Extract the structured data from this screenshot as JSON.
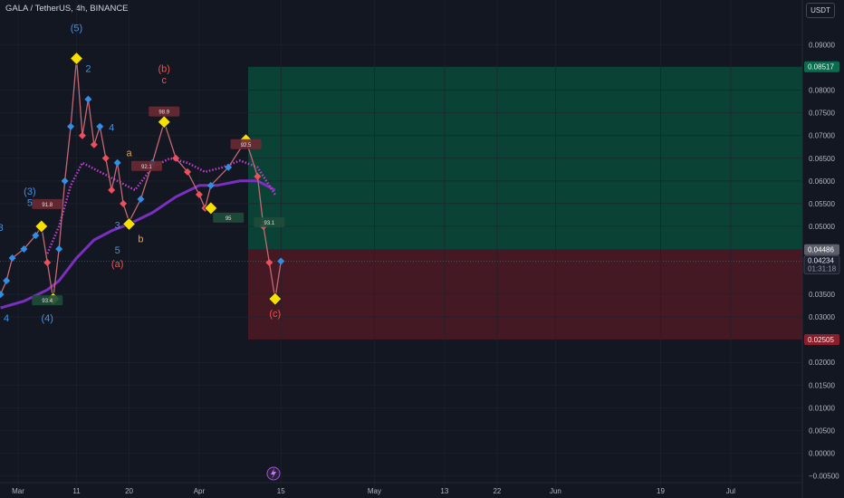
{
  "header": {
    "symbol_title": "GALA / TetherUS, 4h, BINANCE",
    "currency": "USDT"
  },
  "colors": {
    "background": "#131722",
    "profit_zone": "#0b4a3a",
    "loss_zone": "#4d1a23",
    "axis_text": "#b2b5be",
    "ma_main": "#7b2fbe",
    "ma_dotted": "#c03fd0",
    "pivot_marker": "#f5e000",
    "bull_marker": "#2f8fe6",
    "bear_marker": "#ef4f5b",
    "wave_blue": "#4a8fe0",
    "wave_red": "#ef5350",
    "wave_orange": "#f0a040"
  },
  "chart_data": {
    "type": "line",
    "x_tick_labels": [
      "Mar",
      "11",
      "20",
      "Apr",
      "15",
      "May",
      "13",
      "22",
      "Jun",
      "19",
      "Jul"
    ],
    "y_ticks": [
      "0.09000",
      "0.08000",
      "0.07500",
      "0.07000",
      "0.06500",
      "0.06000",
      "0.05500",
      "0.05000",
      "0.03500",
      "0.03000",
      "0.02000",
      "0.01500",
      "0.01000",
      "0.00500",
      "0.00000",
      "−0.00500"
    ],
    "ylim": [
      -0.0055,
      0.0935
    ],
    "price_labels": {
      "target": "0.08517",
      "entry": "0.04486",
      "current": "0.04234",
      "countdown": "01:31:18",
      "stop": "0.02505"
    },
    "position": {
      "type": "long",
      "target": 0.08517,
      "entry": 0.04486,
      "stop": 0.02505
    },
    "series": [
      {
        "role": "price path",
        "points": [
          [
            "Feb 27",
            0.035
          ],
          [
            "Feb 28",
            0.038
          ],
          [
            "Feb 29",
            0.043
          ],
          [
            "Mar 2",
            0.045
          ],
          [
            "Mar 4",
            0.048
          ],
          [
            "Mar 5",
            0.05
          ],
          [
            "Mar 6",
            0.042
          ],
          [
            "Mar 7",
            0.034
          ],
          [
            "Mar 8",
            0.045
          ],
          [
            "Mar 9",
            0.06
          ],
          [
            "Mar 10",
            0.072
          ],
          [
            "Mar 11",
            0.087
          ],
          [
            "Mar 12",
            0.07
          ],
          [
            "Mar 13",
            0.078
          ],
          [
            "Mar 14",
            0.068
          ],
          [
            "Mar 15",
            0.072
          ],
          [
            "Mar 16",
            0.065
          ],
          [
            "Mar 17",
            0.058
          ],
          [
            "Mar 18",
            0.064
          ],
          [
            "Mar 19",
            0.055
          ],
          [
            "Mar 20",
            0.051
          ],
          [
            "Mar 22",
            0.056
          ],
          [
            "Mar 24",
            0.064
          ],
          [
            "Mar 26",
            0.073
          ],
          [
            "Mar 28",
            0.065
          ],
          [
            "Mar 30",
            0.062
          ],
          [
            "Apr 1",
            0.057
          ],
          [
            "Apr 2",
            0.054
          ],
          [
            "Apr 3",
            0.059
          ],
          [
            "Apr 6",
            0.063
          ],
          [
            "Apr 9",
            0.069
          ],
          [
            "Apr 11",
            0.061
          ],
          [
            "Apr 12",
            0.05
          ],
          [
            "Apr 13",
            0.042
          ],
          [
            "Apr 14",
            0.034
          ],
          [
            "Apr 15",
            0.0423
          ]
        ]
      },
      {
        "role": "moving average (solid)",
        "points": [
          [
            "Feb 27",
            0.032
          ],
          [
            "Mar 2",
            0.0335
          ],
          [
            "Mar 6",
            0.036
          ],
          [
            "Mar 8",
            0.038
          ],
          [
            "Mar 11",
            0.043
          ],
          [
            "Mar 14",
            0.047
          ],
          [
            "Mar 17",
            0.049
          ],
          [
            "Mar 20",
            0.0505
          ],
          [
            "Mar 24",
            0.053
          ],
          [
            "Mar 28",
            0.0565
          ],
          [
            "Apr 1",
            0.059
          ],
          [
            "Apr 4",
            0.059
          ],
          [
            "Apr 8",
            0.06
          ],
          [
            "Apr 11",
            0.06
          ],
          [
            "Apr 14",
            0.058
          ]
        ]
      },
      {
        "role": "moving average (dotted)",
        "points": [
          [
            "Mar 6",
            0.044
          ],
          [
            "Mar 8",
            0.05
          ],
          [
            "Mar 10",
            0.059
          ],
          [
            "Mar 12",
            0.064
          ],
          [
            "Mar 15",
            0.062
          ],
          [
            "Mar 18",
            0.06
          ],
          [
            "Mar 21",
            0.058
          ],
          [
            "Mar 24",
            0.063
          ],
          [
            "Mar 27",
            0.065
          ],
          [
            "Mar 30",
            0.064
          ],
          [
            "Apr 2",
            0.062
          ],
          [
            "Apr 5",
            0.063
          ],
          [
            "Apr 8",
            0.0645
          ],
          [
            "Apr 11",
            0.063
          ],
          [
            "Apr 14",
            0.057
          ]
        ]
      }
    ],
    "pivot_markers": [
      [
        "Mar 5",
        0.05
      ],
      [
        "Mar 7",
        0.034
      ],
      [
        "Mar 11",
        0.087
      ],
      [
        "Mar 20",
        0.0505
      ],
      [
        "Mar 26",
        0.073
      ],
      [
        "Apr 3",
        0.054
      ],
      [
        "Apr 9",
        0.069
      ],
      [
        "Apr 14",
        0.034
      ]
    ],
    "wave_labels": [
      {
        "text": "(5)",
        "x": "Mar 11",
        "y": 0.093,
        "color": "blue"
      },
      {
        "text": "2",
        "x": "Mar 13",
        "y": 0.084,
        "color": "blue"
      },
      {
        "text": "4",
        "x": "Mar 17",
        "y": 0.071,
        "color": "blue"
      },
      {
        "text": "(3)",
        "x": "Mar 3",
        "y": 0.057,
        "color": "blue"
      },
      {
        "text": "5",
        "x": "Mar 3",
        "y": 0.0545,
        "color": "blue"
      },
      {
        "text": "3",
        "x": "Feb 27",
        "y": 0.049,
        "color": "blue"
      },
      {
        "text": "3",
        "x": "Mar 18",
        "y": 0.0495,
        "color": "blue"
      },
      {
        "text": "5",
        "x": "Mar 18",
        "y": 0.044,
        "color": "blue"
      },
      {
        "text": "4",
        "x": "Feb 28",
        "y": 0.029,
        "color": "blue"
      },
      {
        "text": "(4)",
        "x": "Mar 6",
        "y": 0.029,
        "color": "blue"
      },
      {
        "text": "(b)",
        "x": "Mar 26",
        "y": 0.084,
        "color": "red"
      },
      {
        "text": "c",
        "x": "Mar 26",
        "y": 0.0815,
        "color": "red"
      },
      {
        "text": "a",
        "x": "Mar 20",
        "y": 0.0655,
        "color": "orange"
      },
      {
        "text": "b",
        "x": "Mar 22",
        "y": 0.0465,
        "color": "orange"
      },
      {
        "text": "(a)",
        "x": "Mar 18",
        "y": 0.041,
        "color": "red"
      },
      {
        "text": "(c)",
        "x": "Apr 14",
        "y": 0.03,
        "color": "red"
      }
    ],
    "score_tags": [
      {
        "text": "91.8",
        "x": "Mar 6",
        "y": 0.0548,
        "kind": "bear"
      },
      {
        "text": "93.4",
        "x": "Mar 6",
        "y": 0.0336,
        "kind": "bull"
      },
      {
        "text": "98.9",
        "x": "Mar 26",
        "y": 0.0752,
        "kind": "bear"
      },
      {
        "text": "92.1",
        "x": "Mar 23",
        "y": 0.0632,
        "kind": "bear"
      },
      {
        "text": "92.5",
        "x": "Apr 9",
        "y": 0.068,
        "kind": "bear"
      },
      {
        "text": "95",
        "x": "Apr 6",
        "y": 0.0518,
        "kind": "bull"
      },
      {
        "text": "93.1",
        "x": "Apr 13",
        "y": 0.0508,
        "kind": "bull"
      }
    ]
  }
}
